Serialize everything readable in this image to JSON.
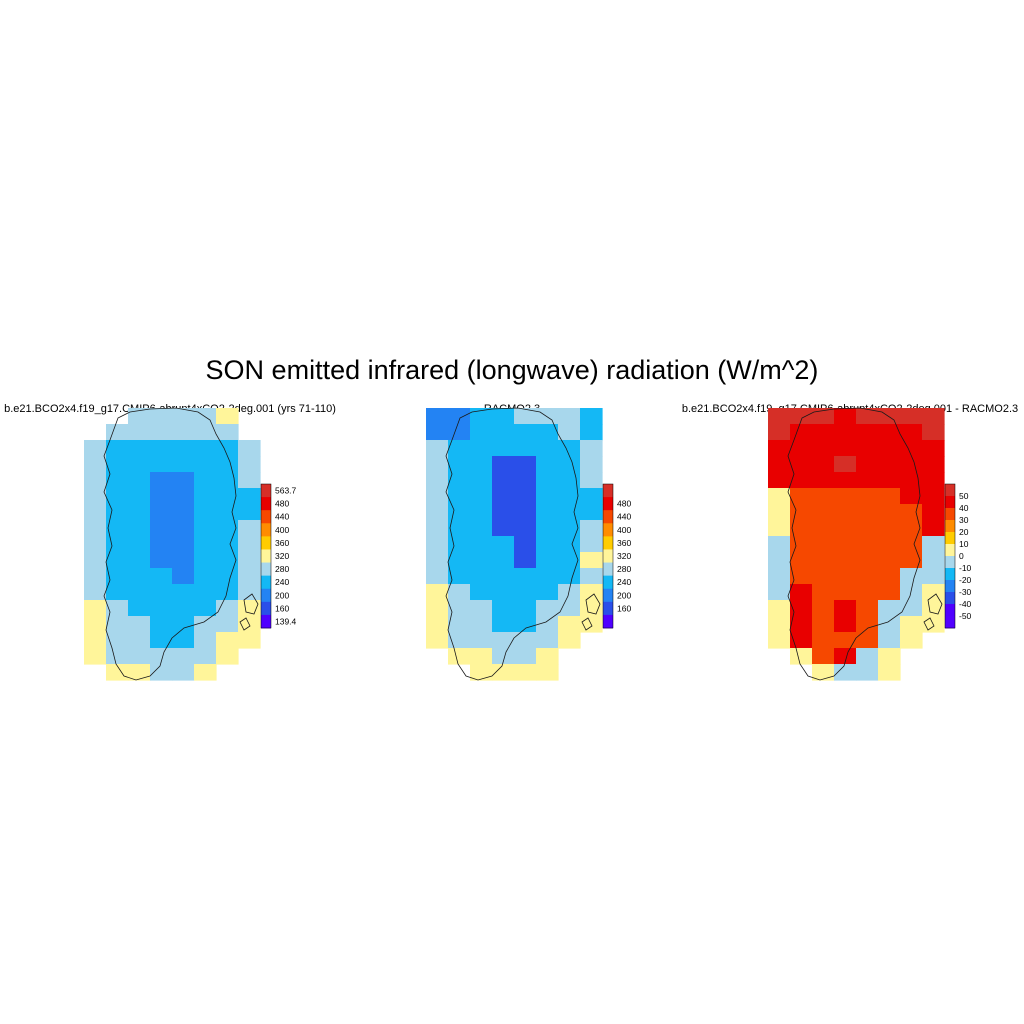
{
  "title": "SON emitted infrared (longwave) radiation (W/m^2)",
  "panels": [
    {
      "title": "b.e21.BCO2x4.f19_g17.CMIP6-abrupt4xCO2-2deg.001 (yrs 71-110)",
      "colorbar": {
        "labels": [
          "563.7",
          "480",
          "440",
          "400",
          "360",
          "320",
          "280",
          "240",
          "200",
          "160",
          "139.4"
        ],
        "colors": [
          "#d62f27",
          "#e80000",
          "#f64800",
          "#ff8c00",
          "#ffcc00",
          "#fff59a",
          "#a8d7ec",
          "#14b8f5",
          "#2383f3",
          "#2a4fe9",
          "#4f00ff"
        ]
      },
      "field": "control"
    },
    {
      "title": "RACMO2.3",
      "colorbar": {
        "labels": [
          "480",
          "440",
          "400",
          "360",
          "320",
          "280",
          "240",
          "200",
          "160"
        ],
        "colors": [
          "#d62f27",
          "#e80000",
          "#f64800",
          "#ff8c00",
          "#ffcc00",
          "#fff59a",
          "#a8d7ec",
          "#14b8f5",
          "#2383f3",
          "#2a4fe9",
          "#4f00ff"
        ]
      },
      "field": "racmo"
    },
    {
      "title": "b.e21.BCO2x4.f19_g17.CMIP6-abrupt4xCO2-2deg.001 - RACMO2.3",
      "colorbar": {
        "labels": [
          "50",
          "40",
          "30",
          "20",
          "10",
          "0",
          "-10",
          "-20",
          "-30",
          "-40",
          "-50"
        ],
        "colors": [
          "#d62f27",
          "#e80000",
          "#f64800",
          "#ff8c00",
          "#ffcc00",
          "#fff59a",
          "#a8d7ec",
          "#14b8f5",
          "#2383f3",
          "#2a4fe9",
          "#4f00ff",
          "#5200ff"
        ]
      },
      "field": "diff"
    }
  ]
}
